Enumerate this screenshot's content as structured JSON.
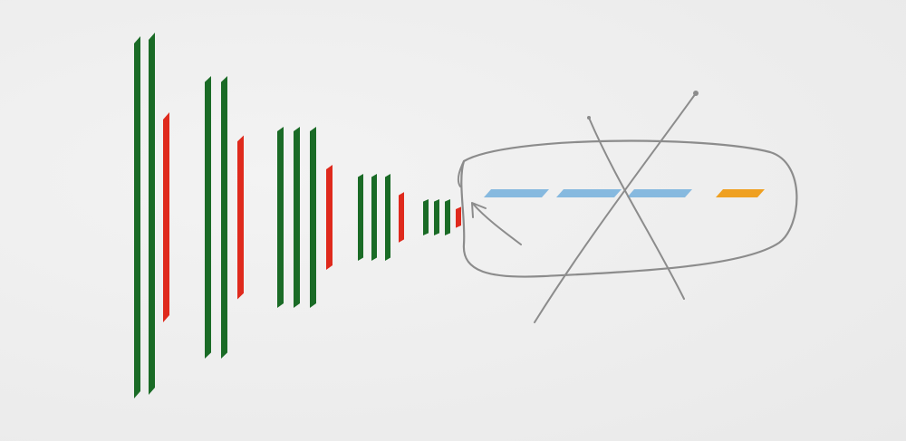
{
  "colors": {
    "background": "#efefef",
    "layer": "#1a6b26",
    "pool": "#df2a1d",
    "queue_item": "#86b9df",
    "queue_output": "#efa021",
    "pen": "#8c8c8c"
  },
  "layers": [
    {
      "layer_bars": 2,
      "pool_bars": 1,
      "depth": 1.0
    },
    {
      "layer_bars": 2,
      "pool_bars": 1,
      "depth": 0.78
    },
    {
      "layer_bars": 3,
      "pool_bars": 1,
      "depth": 0.5
    },
    {
      "layer_bars": 3,
      "pool_bars": 1,
      "depth": 0.24
    },
    {
      "layer_bars": 3,
      "pool_bars": 1,
      "depth": 0.1
    }
  ],
  "queue": {
    "hidden_items": 3,
    "output_items": 1,
    "crossed_out": true,
    "enclosed": true
  }
}
